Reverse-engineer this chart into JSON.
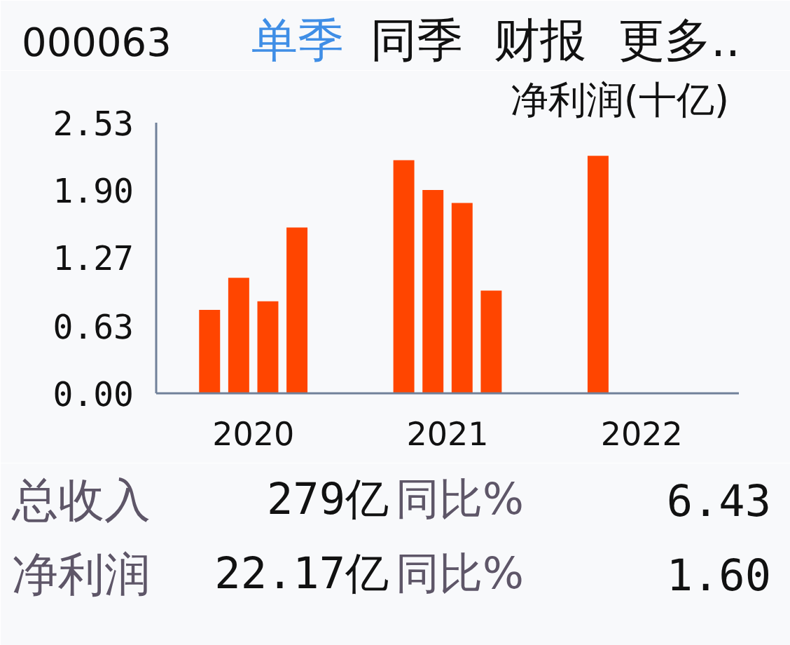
{
  "chart_data": {
    "type": "bar",
    "title": "000063",
    "ylabel": "净利润(十亿)",
    "categories": [
      "2020",
      "2021",
      "2022"
    ],
    "series": [
      {
        "color": "#ff4500",
        "values": [
          0.78,
          2.18,
          2.22
        ]
      },
      {
        "color": "#ff4500",
        "values": [
          1.08,
          1.9,
          null
        ]
      },
      {
        "color": "#ff4500",
        "values": [
          0.86,
          1.78,
          null
        ]
      },
      {
        "color": "#ff4500",
        "values": [
          1.55,
          0.96,
          null
        ]
      }
    ],
    "ylim": [
      0,
      2.53
    ],
    "yticks": [
      {
        "value": 0,
        "label": "0.00"
      },
      0.63,
      1.27,
      {
        "value": 1.9,
        "label": "1.90"
      },
      2.53
    ],
    "grid": false,
    "annotations": [
      "单季",
      "同季",
      "财报",
      "更多..",
      "总收入",
      "279亿",
      "同比%",
      "6.43",
      "净利润",
      "22.17亿",
      "同比%",
      "1.60"
    ]
  }
}
